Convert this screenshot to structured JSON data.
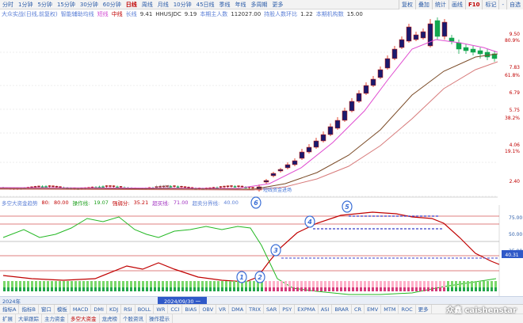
{
  "toolbar": {
    "periods": [
      {
        "label": "分时",
        "active": false
      },
      {
        "label": "1分钟",
        "active": false
      },
      {
        "label": "5分钟",
        "active": false
      },
      {
        "label": "15分钟",
        "active": false
      },
      {
        "label": "30分钟",
        "active": false
      },
      {
        "label": "60分钟",
        "active": false
      },
      {
        "label": "日线",
        "active": true
      },
      {
        "label": "周线",
        "active": false
      },
      {
        "label": "月线",
        "active": false
      },
      {
        "label": "10分钟",
        "active": false
      },
      {
        "label": "45日线",
        "active": false
      },
      {
        "label": "季线",
        "active": false
      },
      {
        "label": "年线",
        "active": false
      },
      {
        "label": "多周期",
        "active": false
      },
      {
        "label": "更多",
        "active": false
      }
    ],
    "right_tabs": [
      {
        "label": "复权",
        "active": false
      },
      {
        "label": "叠加",
        "active": false
      },
      {
        "label": "统计",
        "active": false
      },
      {
        "label": "画线",
        "active": false
      },
      {
        "label": "F10",
        "active": true
      },
      {
        "label": "标记",
        "active": false
      },
      {
        "label": "-",
        "active": false
      },
      {
        "label": "自选",
        "active": false
      }
    ]
  },
  "info_bar": {
    "indicator": "大众实战(日线,前复权)",
    "ma_label": "智能辅助均线",
    "line1": "短线",
    "line2": "中线",
    "line3": "长线",
    "val1": "9.41",
    "code": "HHUSJDC",
    "code_val": "9.19",
    "buy_label": "本期主人数",
    "buy_val": "112027.00",
    "hold_label": "持股人数环比",
    "hold_val": "1.22",
    "inst_label": "本期机构数",
    "inst_val": "15.00"
  },
  "price_labels": [
    {
      "text": "9.50",
      "style": "small"
    },
    {
      "text": "80.9%",
      "style": "small"
    },
    {
      "text": "7.83",
      "style": "small"
    },
    {
      "text": "61.8%",
      "style": "small"
    },
    {
      "text": "6.79",
      "style": "small"
    },
    {
      "text": "5.75",
      "style": "small"
    },
    {
      "text": "38.2%",
      "style": "small"
    },
    {
      "text": "4.06",
      "style": "small"
    },
    {
      "text": "19.1%",
      "style": "small"
    },
    {
      "text": "2.40",
      "style": "small"
    }
  ],
  "price_panel": {
    "annotation": "短线资金进场",
    "small_label": "大众共享"
  },
  "secondary_bar": {
    "title": "多空大资金趋势",
    "v1_label": "80:",
    "v1": "80.00",
    "v2_label": "操作线:",
    "v2": "19.07",
    "v3_label": "强弱分:",
    "v3": "35.21",
    "v4_label": "超买线:",
    "v4": "71.00",
    "v5_label": "超卖分界线:",
    "v5": "40.00"
  },
  "osc_labels": [
    {
      "text": "75.00"
    },
    {
      "text": "50.00"
    },
    {
      "text": "25.00"
    }
  ],
  "osc_value": "40.31",
  "markers": [
    {
      "text": "1",
      "color": "#3b6fd6"
    },
    {
      "text": "2",
      "color": "#3b6fd6"
    },
    {
      "text": "3",
      "color": "#3b6fd6"
    },
    {
      "text": "4",
      "color": "#3b6fd6"
    },
    {
      "text": "5",
      "color": "#3b6fd6"
    },
    {
      "text": "6",
      "color": "#3b6fd6"
    }
  ],
  "date_strip": {
    "year": "2024年",
    "selected": "2024/09/30 一"
  },
  "bottom_tabs": [
    {
      "label": "指标A",
      "active": false
    },
    {
      "label": "指标B",
      "active": false
    },
    {
      "label": "窗口",
      "active": false
    },
    {
      "label": "模板",
      "active": false
    },
    {
      "label": "MACD",
      "active": false
    },
    {
      "label": "DMI",
      "active": false
    },
    {
      "label": "KDJ",
      "active": false
    },
    {
      "label": "RSI",
      "active": false
    },
    {
      "label": "BOLL",
      "active": false
    },
    {
      "label": "WR",
      "active": false
    },
    {
      "label": "CCI",
      "active": false
    },
    {
      "label": "BIAS",
      "active": false
    },
    {
      "label": "OBV",
      "active": false
    },
    {
      "label": "VR",
      "active": false
    },
    {
      "label": "DMA",
      "active": false
    },
    {
      "label": "TRIX",
      "active": false
    },
    {
      "label": "SAR",
      "active": false
    },
    {
      "label": "PSY",
      "active": false
    },
    {
      "label": "EXPMA",
      "active": false
    },
    {
      "label": "ASI",
      "active": false
    },
    {
      "label": "BRAR",
      "active": false
    },
    {
      "label": "CR",
      "active": false
    },
    {
      "label": "EMV",
      "active": false
    },
    {
      "label": "MTM",
      "active": false
    },
    {
      "label": "ROC",
      "active": false
    },
    {
      "label": "更多",
      "active": false
    }
  ],
  "bottom_tabs2": [
    {
      "label": "扩展",
      "active": false
    },
    {
      "label": "大单跟踪",
      "active": false
    },
    {
      "label": "主力资金",
      "active": false
    },
    {
      "label": "多空大资金",
      "active": true
    },
    {
      "label": "龙虎榜",
      "active": false
    },
    {
      "label": "个股资讯",
      "active": false
    },
    {
      "label": "操作提示",
      "active": false
    }
  ],
  "watermark": "众鑫 caishenstar",
  "colors": {
    "up": "#d81e06",
    "down": "#12a64e",
    "ma_short": "#e04cd0",
    "ma_mid": "#7a4a26",
    "ma_long": "#d77a7a",
    "osc_red": "#c00000",
    "osc_green": "#23b823",
    "osc_purple": "#3a3fc8"
  }
}
